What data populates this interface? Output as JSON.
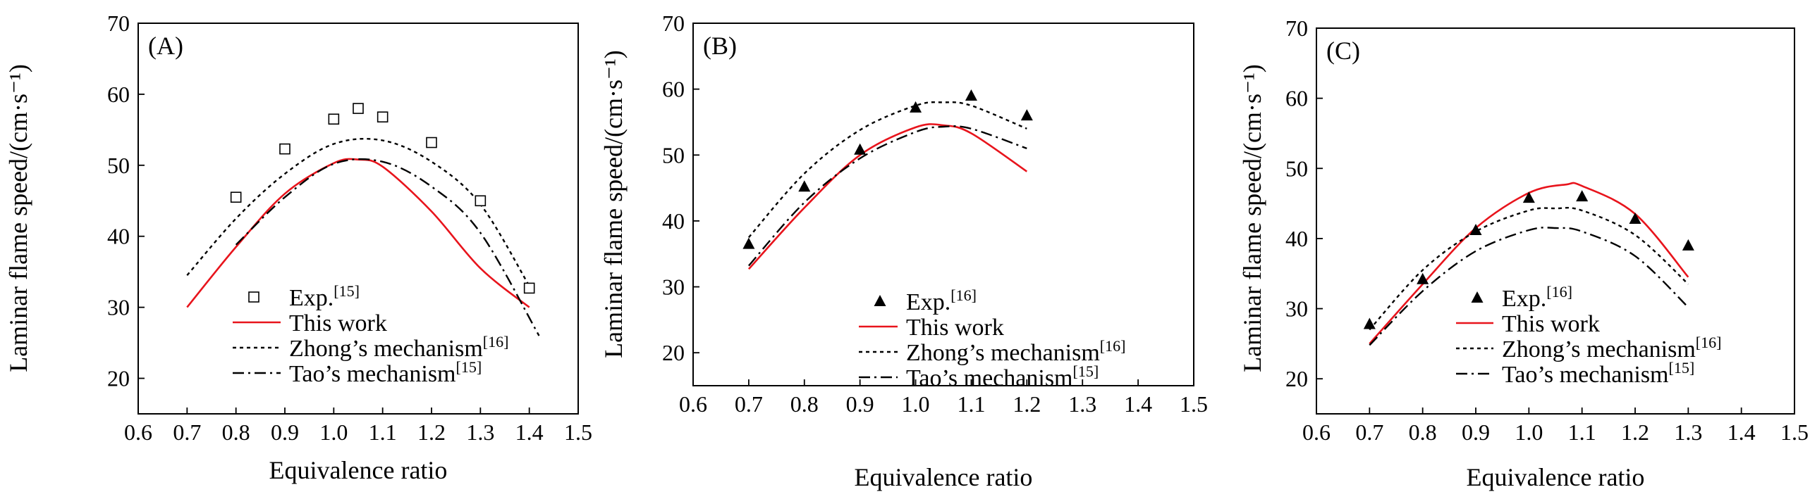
{
  "chart_data": [
    {
      "type": "line",
      "panel_label": "(A)",
      "xlabel": "Equivalence ratio",
      "ylabel": "Laminar flame speed/(cm·s⁻¹)",
      "xlim": [
        0.6,
        1.5
      ],
      "ylim": [
        15,
        70
      ],
      "xticks": [
        "0.6",
        "0.7",
        "0.8",
        "0.9",
        "1.0",
        "1.1",
        "1.2",
        "1.3",
        "1.4",
        "1.5"
      ],
      "yticks": [
        "20",
        "30",
        "40",
        "50",
        "60",
        "70"
      ],
      "legend_position": "bottom-right",
      "experiment": {
        "name": "Exp.",
        "ref": "[15]",
        "marker": "open-square",
        "x": [
          0.8,
          0.9,
          1.0,
          1.05,
          1.1,
          1.2,
          1.3,
          1.4
        ],
        "y": [
          45.5,
          52.3,
          56.5,
          58.0,
          56.8,
          53.2,
          45.0,
          32.7
        ]
      },
      "series": [
        {
          "name": "This work",
          "ref": "",
          "style": "solid",
          "color": "#e8141c",
          "x": [
            0.7,
            0.8,
            0.9,
            1.0,
            1.05,
            1.1,
            1.2,
            1.3,
            1.4
          ],
          "y": [
            30.0,
            38.5,
            46.0,
            50.3,
            50.8,
            49.8,
            43.5,
            35.5,
            30.0
          ]
        },
        {
          "name": "Zhong’s mechanism",
          "ref": "[16]",
          "style": "dotted",
          "color": "#000000",
          "x": [
            0.7,
            0.8,
            0.9,
            1.0,
            1.1,
            1.2,
            1.3,
            1.4
          ],
          "y": [
            34.5,
            42.5,
            48.8,
            53.0,
            53.5,
            50.5,
            44.5,
            33.0
          ]
        },
        {
          "name": "Tao’s mechanism",
          "ref": "[15]",
          "style": "dashdot",
          "color": "#000000",
          "x": [
            0.8,
            0.9,
            1.0,
            1.1,
            1.2,
            1.3,
            1.42
          ],
          "y": [
            38.8,
            45.5,
            50.2,
            50.5,
            47.0,
            40.5,
            26.0
          ]
        }
      ]
    },
    {
      "type": "line",
      "panel_label": "(B)",
      "xlabel": "Equivalence ratio",
      "ylabel": "Laminar flame speed/(cm·s⁻¹)",
      "xlim": [
        0.6,
        1.5
      ],
      "ylim": [
        15,
        70
      ],
      "xticks": [
        "0.6",
        "0.7",
        "0.8",
        "0.9",
        "1.0",
        "1.1",
        "1.2",
        "1.3",
        "1.4",
        "1.5"
      ],
      "yticks": [
        "20",
        "30",
        "40",
        "50",
        "60",
        "70"
      ],
      "legend_position": "bottom-right",
      "experiment": {
        "name": "Exp.",
        "ref": "[16]",
        "marker": "filled-triangle",
        "x": [
          0.7,
          0.8,
          0.9,
          1.0,
          1.1,
          1.2
        ],
        "y": [
          36.5,
          45.2,
          50.8,
          57.2,
          59.0,
          56.0
        ]
      },
      "series": [
        {
          "name": "This work",
          "ref": "",
          "style": "solid",
          "color": "#e8141c",
          "x": [
            0.7,
            0.8,
            0.9,
            1.0,
            1.05,
            1.1,
            1.2
          ],
          "y": [
            32.7,
            42.0,
            50.0,
            54.2,
            54.5,
            53.3,
            47.5
          ]
        },
        {
          "name": "Zhong’s mechanism",
          "ref": "[16]",
          "style": "dotted",
          "color": "#000000",
          "x": [
            0.7,
            0.8,
            0.9,
            1.0,
            1.05,
            1.1,
            1.2
          ],
          "y": [
            37.5,
            47.2,
            53.8,
            57.5,
            58.0,
            57.5,
            54.0
          ]
        },
        {
          "name": "Tao’s mechanism",
          "ref": "[15]",
          "style": "dashdot",
          "color": "#000000",
          "x": [
            0.7,
            0.8,
            0.9,
            1.0,
            1.05,
            1.1,
            1.2
          ],
          "y": [
            33.2,
            42.8,
            49.5,
            53.5,
            54.3,
            54.0,
            51.0
          ]
        }
      ]
    },
    {
      "type": "line",
      "panel_label": "(C)",
      "xlabel": "Equivalence ratio",
      "ylabel": "Laminar flame speed/(cm·s⁻¹)",
      "xlim": [
        0.6,
        1.5
      ],
      "ylim": [
        15,
        70
      ],
      "xticks": [
        "0.6",
        "0.7",
        "0.8",
        "0.9",
        "1.0",
        "1.1",
        "1.2",
        "1.3",
        "1.4",
        "1.5"
      ],
      "yticks": [
        "20",
        "30",
        "40",
        "50",
        "60",
        "70"
      ],
      "legend_position": "bottom-right",
      "experiment": {
        "name": "Exp.",
        "ref": "[16]",
        "marker": "filled-triangle",
        "x": [
          0.7,
          0.8,
          0.9,
          1.0,
          1.1,
          1.2,
          1.3
        ],
        "y": [
          27.8,
          34.2,
          41.2,
          45.8,
          46.0,
          42.8,
          39.0
        ]
      },
      "series": [
        {
          "name": "This work",
          "ref": "",
          "style": "solid",
          "color": "#e8141c",
          "x": [
            0.7,
            0.8,
            0.9,
            1.0,
            1.07,
            1.1,
            1.2,
            1.3
          ],
          "y": [
            25.0,
            33.5,
            41.5,
            46.5,
            47.7,
            47.5,
            43.5,
            34.5
          ]
        },
        {
          "name": "Zhong’s mechanism",
          "ref": "[16]",
          "style": "dotted",
          "color": "#000000",
          "x": [
            0.7,
            0.8,
            0.9,
            1.0,
            1.05,
            1.1,
            1.2,
            1.3
          ],
          "y": [
            27.0,
            35.5,
            41.0,
            44.0,
            44.3,
            44.0,
            40.5,
            33.5
          ]
        },
        {
          "name": "Tao’s mechanism",
          "ref": "[15]",
          "style": "dashdot",
          "color": "#000000",
          "x": [
            0.7,
            0.8,
            0.9,
            1.0,
            1.05,
            1.1,
            1.2,
            1.3
          ],
          "y": [
            24.8,
            32.5,
            38.2,
            41.2,
            41.5,
            41.0,
            37.5,
            30.2
          ]
        }
      ]
    }
  ]
}
